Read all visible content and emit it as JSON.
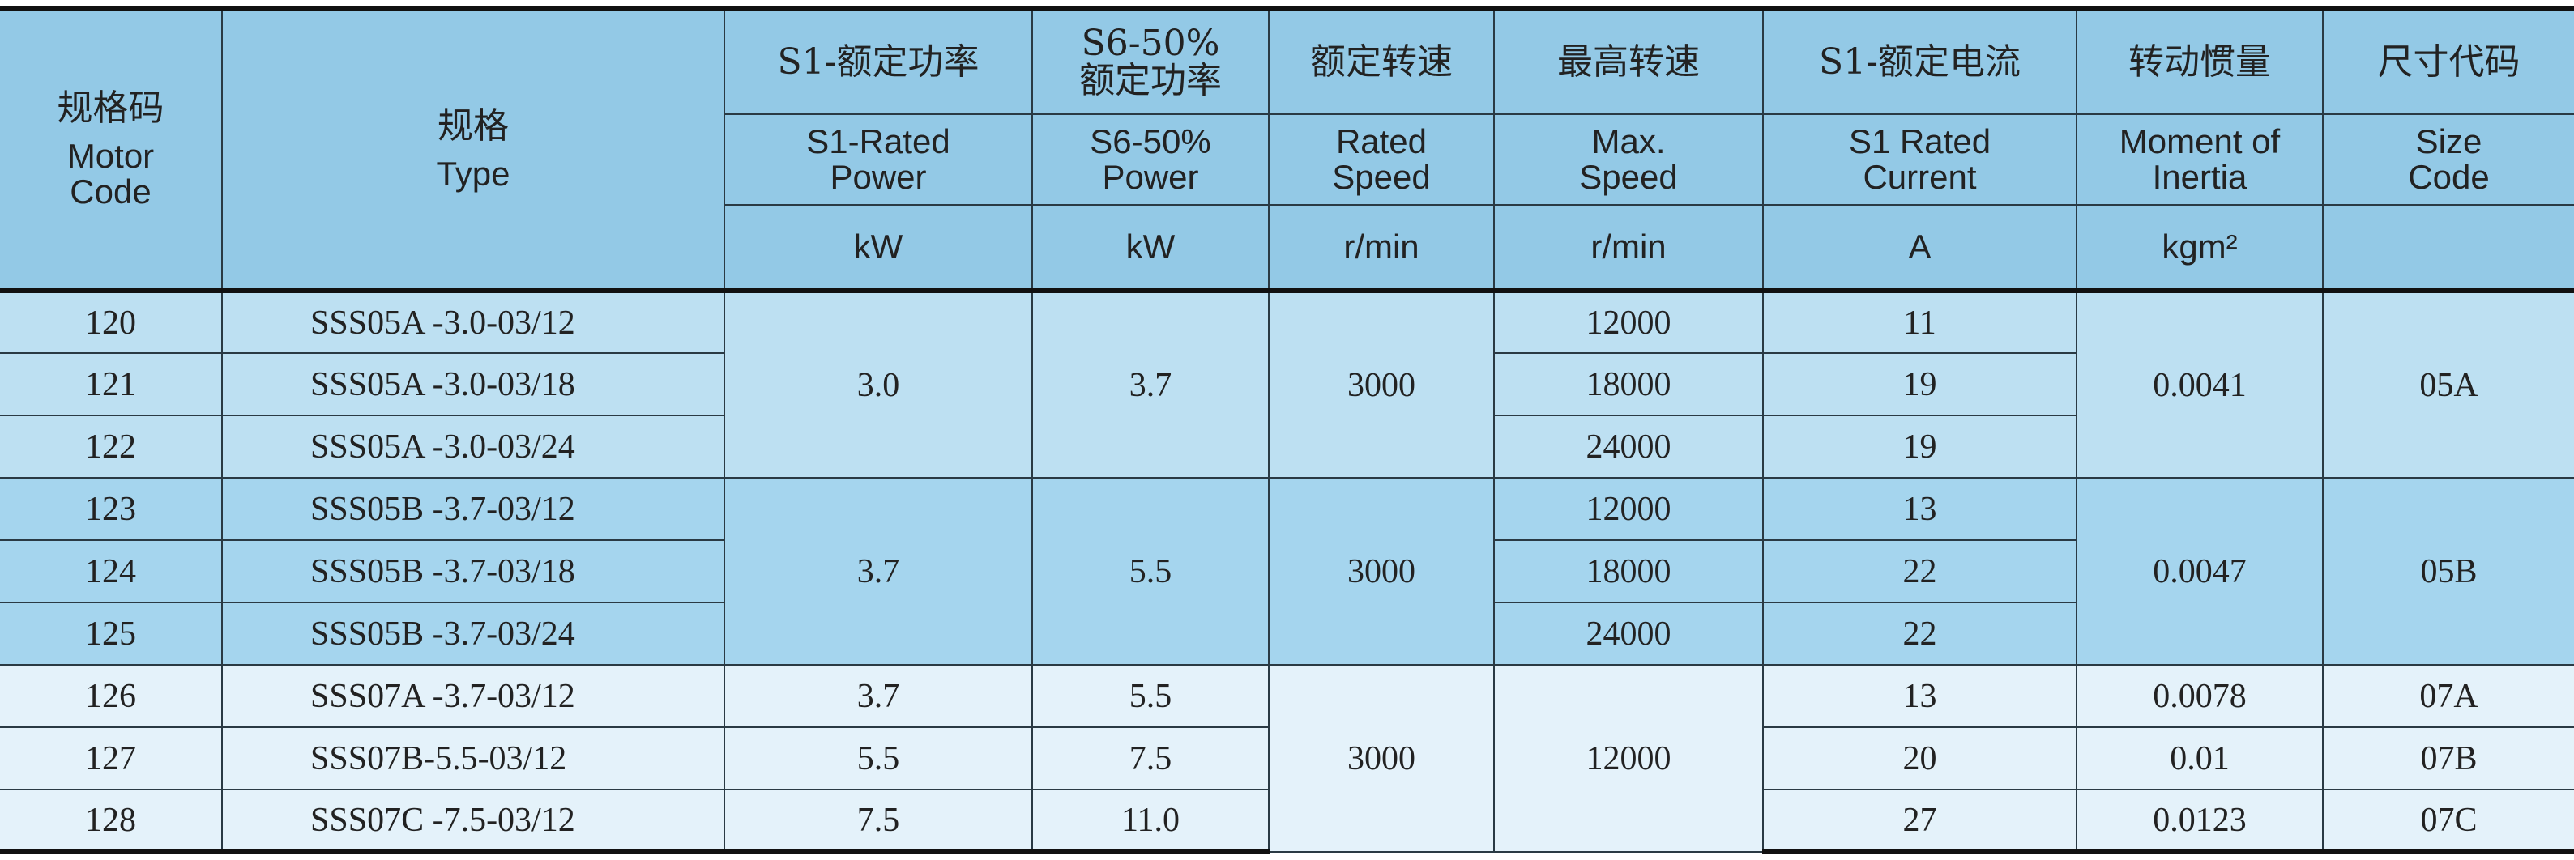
{
  "table": {
    "columns": [
      {
        "zh": [
          "规格码"
        ],
        "en": [
          "Motor",
          "Code"
        ]
      },
      {
        "zh": [
          "规格"
        ],
        "en": [
          "Type"
        ]
      },
      {
        "zh": [
          "S1-额定功率"
        ],
        "en": [
          "S1-Rated",
          "Power"
        ],
        "unit": "kW"
      },
      {
        "zh": [
          "S6-50%",
          "额定功率"
        ],
        "en": [
          "S6-50%",
          "Power"
        ],
        "unit": "kW"
      },
      {
        "zh": [
          "额定转速"
        ],
        "en": [
          "Rated",
          "Speed"
        ],
        "unit": "r/min"
      },
      {
        "zh": [
          "最高转速"
        ],
        "en": [
          "Max.",
          "Speed"
        ],
        "unit": "r/min"
      },
      {
        "zh": [
          "S1-额定电流"
        ],
        "en": [
          "S1 Rated",
          "Current"
        ],
        "unit": "A"
      },
      {
        "zh": [
          "转动惯量"
        ],
        "en": [
          "Moment of",
          "Inertia"
        ],
        "unit": "kgm²"
      },
      {
        "zh": [
          "尺寸代码"
        ],
        "en": [
          "Size",
          "Code"
        ]
      }
    ],
    "rows": [
      [
        "120",
        "SSS05A -3.0-03/12",
        "3.0",
        "3.7",
        "3000",
        "12000",
        "11",
        "0.0041",
        "05A"
      ],
      [
        "121",
        "SSS05A -3.0-03/18",
        null,
        null,
        null,
        "18000",
        "19",
        null,
        null
      ],
      [
        "122",
        "SSS05A -3.0-03/24",
        null,
        null,
        null,
        "24000",
        "19",
        null,
        null
      ],
      [
        "123",
        "SSS05B -3.7-03/12",
        "3.7",
        "5.5",
        "3000",
        "12000",
        "13",
        "0.0047",
        "05B"
      ],
      [
        "124",
        "SSS05B -3.7-03/18",
        null,
        null,
        null,
        "18000",
        "22",
        null,
        null
      ],
      [
        "125",
        "SSS05B -3.7-03/24",
        null,
        null,
        null,
        "24000",
        "22",
        null,
        null
      ],
      [
        "126",
        "SSS07A -3.7-03/12",
        "3.7",
        "5.5",
        "3000",
        "12000",
        "13",
        "0.0078",
        "07A"
      ],
      [
        "127",
        "SSS07B-5.5-03/12",
        "5.5",
        "7.5",
        null,
        null,
        "20",
        "0.01",
        "07B"
      ],
      [
        "128",
        "SSS07C -7.5-03/12",
        "7.5",
        "11.0",
        null,
        null,
        "27",
        "0.0123",
        "07C"
      ]
    ]
  }
}
